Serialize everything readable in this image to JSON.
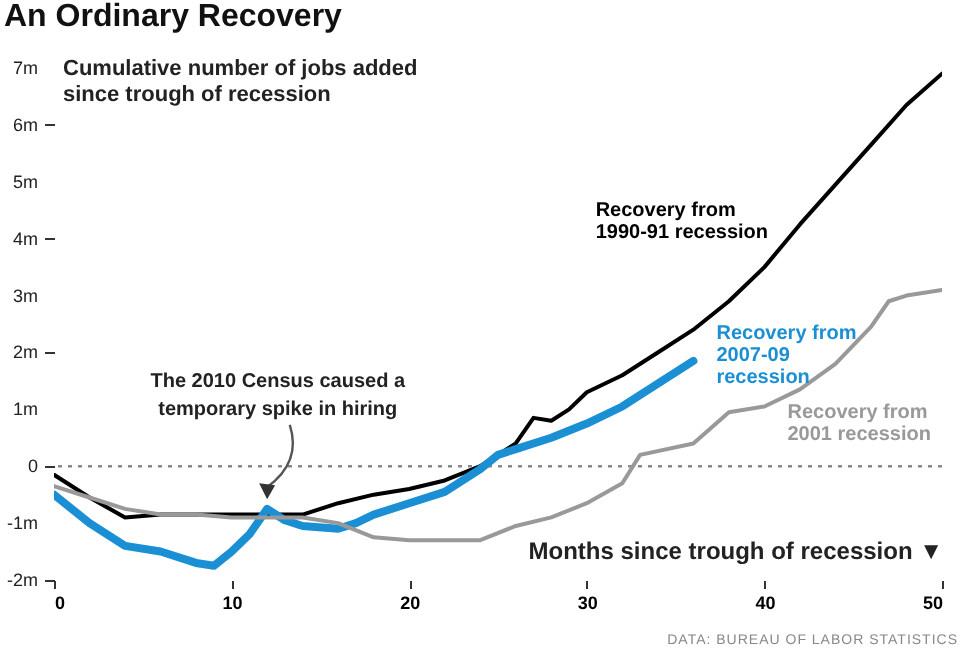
{
  "chart_data": {
    "type": "line",
    "title": "An Ordinary Recovery",
    "xlabel": "Months since trough of recession ▼",
    "ylabel": "Cumulative number of jobs added since trough of recession",
    "xlim": [
      0,
      50
    ],
    "xticks": [
      0,
      10,
      20,
      30,
      40,
      50
    ],
    "ylim": [
      -2,
      7
    ],
    "yticks": [
      {
        "value": -2,
        "label": "-2m"
      },
      {
        "value": -1,
        "label": "-1m"
      },
      0,
      {
        "value": 1,
        "label": "1m"
      },
      {
        "value": 2,
        "label": "2m"
      },
      {
        "value": 3,
        "label": "3m"
      },
      {
        "value": 4,
        "label": "4m"
      },
      {
        "value": 5,
        "label": "5m"
      },
      {
        "value": 6,
        "label": "6m"
      },
      {
        "value": 7,
        "label": "7m"
      }
    ],
    "grid": false,
    "marker": "none",
    "line_style": "solid",
    "ref_lines": [
      {
        "axis": "y",
        "value": 0,
        "color": "#888888",
        "line_style": "dotted"
      }
    ],
    "annotations": [
      "The 2010 Census caused a temporary spike in hiring",
      "DATA: BUREAU OF LABOR STATISTICS"
    ],
    "series": [
      {
        "name": "Recovery from 1990-91 recession",
        "color": "#000000",
        "x": [
          0,
          2,
          4,
          6,
          8,
          10,
          12,
          14,
          16,
          18,
          20,
          22,
          24,
          26,
          27,
          28,
          29,
          30,
          32,
          34,
          36,
          38,
          40,
          42,
          44,
          46,
          48,
          50
        ],
        "values": [
          -0.15,
          -0.55,
          -0.9,
          -0.85,
          -0.85,
          -0.85,
          -0.85,
          -0.85,
          -0.65,
          -0.5,
          -0.4,
          -0.25,
          0.0,
          0.4,
          0.85,
          0.8,
          1.0,
          1.3,
          1.6,
          2.0,
          2.4,
          2.9,
          3.5,
          4.25,
          4.95,
          5.65,
          6.35,
          6.9
        ]
      },
      {
        "name": "Recovery from 2007-09 recession",
        "color": "#1b8fd4",
        "x": [
          0,
          2,
          4,
          6,
          8,
          9,
          10,
          11,
          12,
          13,
          14,
          16,
          17,
          18,
          20,
          22,
          24,
          25,
          26,
          28,
          30,
          32,
          34,
          36
        ],
        "values": [
          -0.5,
          -1.0,
          -1.4,
          -1.5,
          -1.7,
          -1.75,
          -1.5,
          -1.2,
          -0.75,
          -0.95,
          -1.05,
          -1.1,
          -1.0,
          -0.85,
          -0.65,
          -0.45,
          -0.05,
          0.2,
          0.3,
          0.5,
          0.75,
          1.05,
          1.45,
          1.85
        ]
      },
      {
        "name": "Recovery from 2001 recession",
        "color": "#999999",
        "x": [
          0,
          2,
          4,
          6,
          8,
          10,
          12,
          14,
          16,
          18,
          20,
          22,
          24,
          26,
          28,
          30,
          32,
          33,
          36,
          38,
          40,
          42,
          44,
          46,
          47,
          48,
          50
        ],
        "values": [
          -0.35,
          -0.55,
          -0.75,
          -0.85,
          -0.85,
          -0.9,
          -0.9,
          -0.9,
          -1.0,
          -1.25,
          -1.3,
          -1.3,
          -1.3,
          -1.05,
          -0.9,
          -0.65,
          -0.3,
          0.2,
          0.4,
          0.95,
          1.05,
          1.35,
          1.8,
          2.45,
          2.9,
          3.0,
          3.1
        ]
      }
    ]
  }
}
